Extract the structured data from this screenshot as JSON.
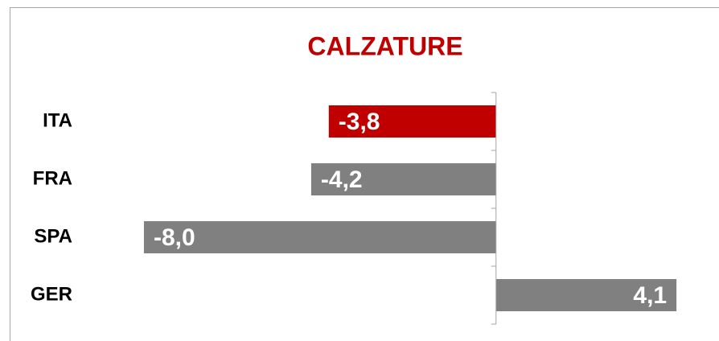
{
  "chart_data": {
    "type": "barh",
    "title": "CALZATURE",
    "categories": [
      "ITA",
      "FRA",
      "SPA",
      "GER"
    ],
    "values": [
      -3.8,
      -4.2,
      -8.0,
      4.1
    ],
    "value_labels": [
      "-3,8",
      "-4,2",
      "-8,0",
      "4,1"
    ],
    "colors": [
      "#c00000",
      "#808080",
      "#808080",
      "#808080"
    ],
    "title_color": "#c00000",
    "xlim": [
      -8.5,
      4.5
    ]
  }
}
